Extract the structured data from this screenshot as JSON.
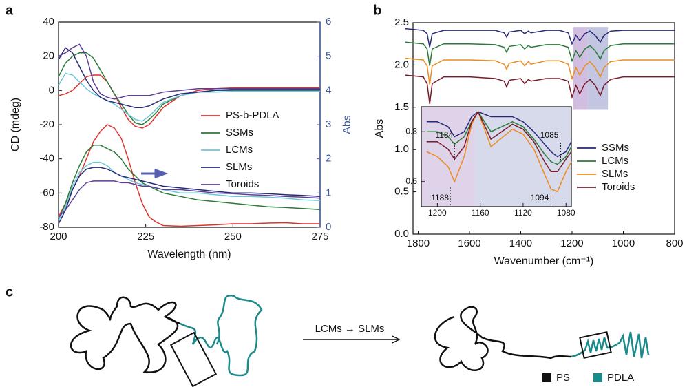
{
  "panel_labels": [
    "a",
    "b",
    "c"
  ],
  "chart_data": [
    {
      "type": "line",
      "xlabel": "Wavelength (nm)",
      "ylabel": "CD (mdeg)",
      "y2label": "Abs",
      "y2color": "#3d5a9e",
      "x": [
        200,
        202,
        204,
        206,
        208,
        210,
        212,
        214,
        216,
        218,
        220,
        222,
        224,
        226,
        228,
        230,
        235,
        240,
        245,
        250,
        255,
        260,
        265,
        270,
        275
      ],
      "xlim": [
        200,
        275
      ],
      "xticks": [
        200,
        225,
        250,
        275
      ],
      "ylim": [
        -80,
        40
      ],
      "yticks": [
        -80,
        -60,
        -40,
        -20,
        0,
        20,
        40
      ],
      "y2lim": [
        0,
        6
      ],
      "y2ticks": [
        0,
        1,
        2,
        3,
        4,
        5,
        6
      ],
      "series": [
        {
          "name": "PS-b-PDLA",
          "color": "#e0312b",
          "values": [
            -3,
            -2,
            0,
            4,
            8,
            9,
            9,
            5,
            -2,
            -10,
            -17,
            -21,
            -22,
            -20,
            -15,
            -10,
            -3,
            0,
            1,
            1.5,
            1.5,
            1.5,
            1.5,
            1.5,
            1.5
          ]
        },
        {
          "name": "SSMs",
          "color": "#2a7a3a",
          "values": [
            8,
            16,
            20,
            22,
            22,
            19,
            12,
            5,
            -2,
            -8,
            -14,
            -19,
            -20,
            -17,
            -13,
            -8,
            -3,
            -1,
            0,
            0,
            0,
            0,
            0,
            0,
            0
          ]
        },
        {
          "name": "LCMs",
          "color": "#6cc7d6",
          "values": [
            3,
            10,
            9,
            5,
            1,
            -2,
            -4,
            -6,
            -8,
            -11,
            -14,
            -17,
            -18,
            -15,
            -11,
            -7,
            -3,
            -1,
            -1,
            -0.5,
            -0.5,
            -0.5,
            -0.5,
            -0.5,
            -0.5
          ]
        },
        {
          "name": "SLMs",
          "color": "#262a78",
          "values": [
            18,
            25,
            22,
            14,
            6,
            0,
            -4,
            -6,
            -7,
            -8,
            -9,
            -10,
            -10,
            -9,
            -7,
            -5,
            -2,
            -1,
            0,
            0.5,
            0.5,
            0.5,
            0.5,
            0.5,
            0.5
          ]
        },
        {
          "name": "Toroids",
          "color": "#5c3f95",
          "values": [
            20,
            22,
            25,
            27,
            20,
            5,
            -2,
            -4,
            -5,
            -4,
            -3,
            -3,
            -3,
            -3,
            -2,
            -1,
            0,
            1,
            1,
            1,
            1,
            1,
            1,
            1,
            1
          ]
        },
        {
          "axis": "y2",
          "color": "#e0312b",
          "values": [
            0.3,
            0.7,
            1.1,
            1.5,
            2.0,
            2.5,
            2.8,
            3.0,
            2.9,
            2.6,
            2.0,
            1.3,
            0.7,
            0.3,
            0.15,
            0.05,
            0.03,
            0.05,
            0.07,
            0.1,
            0.1,
            0.12,
            0.13,
            0.1,
            0.1
          ]
        },
        {
          "axis": "y2",
          "color": "#2a7a3a",
          "values": [
            0.2,
            0.7,
            1.3,
            1.8,
            2.2,
            2.4,
            2.4,
            2.3,
            2.2,
            2.0,
            1.7,
            1.5,
            1.3,
            1.2,
            1.1,
            1.0,
            0.9,
            0.8,
            0.75,
            0.7,
            0.65,
            0.6,
            0.58,
            0.55,
            0.52
          ]
        },
        {
          "axis": "y2",
          "color": "#6cc7d6",
          "values": [
            0.2,
            0.6,
            1.2,
            1.6,
            1.8,
            1.9,
            1.9,
            1.8,
            1.6,
            1.5,
            1.4,
            1.3,
            1.25,
            1.2,
            1.15,
            1.1,
            1.0,
            1.0,
            0.95,
            0.9,
            0.9,
            0.88,
            0.85,
            0.8,
            0.78
          ]
        },
        {
          "axis": "y2",
          "color": "#262a78",
          "values": [
            0.1,
            0.5,
            1.1,
            1.5,
            1.7,
            1.75,
            1.75,
            1.7,
            1.6,
            1.5,
            1.45,
            1.4,
            1.35,
            1.3,
            1.25,
            1.2,
            1.15,
            1.1,
            1.05,
            1.0,
            1.0,
            0.98,
            0.95,
            0.93,
            0.9
          ]
        },
        {
          "axis": "y2",
          "color": "#5c3f95",
          "values": [
            0.3,
            0.5,
            0.8,
            1.1,
            1.3,
            1.35,
            1.35,
            1.35,
            1.35,
            1.3,
            1.3,
            1.25,
            1.2,
            1.2,
            1.15,
            1.1,
            1.1,
            1.05,
            1.0,
            0.98,
            0.95,
            0.93,
            0.9,
            0.88,
            0.85
          ]
        }
      ]
    },
    {
      "type": "line",
      "xlabel": "Wavenumber (cm⁻¹)",
      "ylabel": "Abs",
      "x": [
        1850,
        1780,
        1765,
        1755,
        1745,
        1700,
        1600,
        1500,
        1465,
        1455,
        1445,
        1400,
        1385,
        1370,
        1360,
        1300,
        1250,
        1215,
        1200,
        1185,
        1170,
        1150,
        1130,
        1110,
        1090,
        1075,
        1050,
        1000,
        900,
        800
      ],
      "xlim": [
        1820,
        800
      ],
      "xticks": [
        1800,
        1600,
        1400,
        1200,
        1000,
        800
      ],
      "ylim": [
        0,
        2.5
      ],
      "yticks": [
        {
          "value": 0,
          "label": "0.0"
        },
        0.5,
        {
          "value": 1,
          "label": "1.0"
        },
        1.5,
        {
          "value": 2,
          "label": "2.0"
        },
        2.5
      ],
      "shaded_ranges": [
        [
          1195,
          1140
        ],
        [
          1140,
          1060
        ]
      ],
      "shade_colors": [
        "#c8b2da",
        "#b8bcdc"
      ],
      "series": [
        {
          "name": "SSMs",
          "color": "#262a78",
          "values": [
            2.43,
            2.41,
            2.37,
            2.21,
            2.37,
            2.41,
            2.41,
            2.41,
            2.38,
            2.33,
            2.39,
            2.41,
            2.37,
            2.4,
            2.38,
            2.41,
            2.41,
            2.38,
            2.25,
            2.35,
            2.29,
            2.37,
            2.4,
            2.35,
            2.27,
            2.35,
            2.4,
            2.41,
            2.41,
            2.41
          ]
        },
        {
          "name": "LCMs",
          "color": "#2a7a3a",
          "values": [
            2.27,
            2.25,
            2.19,
            1.99,
            2.19,
            2.25,
            2.25,
            2.24,
            2.21,
            2.15,
            2.22,
            2.24,
            2.19,
            2.23,
            2.21,
            2.24,
            2.24,
            2.21,
            2.05,
            2.17,
            2.09,
            2.19,
            2.23,
            2.17,
            2.07,
            2.17,
            2.23,
            2.25,
            2.25,
            2.25
          ]
        },
        {
          "name": "SLMs",
          "color": "#ee8a1e",
          "values": [
            2.08,
            2.06,
            1.99,
            1.77,
            1.99,
            2.06,
            2.06,
            2.05,
            2.01,
            1.95,
            2.02,
            2.05,
            1.99,
            2.04,
            2.01,
            2.05,
            2.05,
            2.01,
            1.84,
            1.97,
            1.88,
            1.99,
            2.04,
            1.97,
            1.86,
            1.97,
            2.04,
            2.06,
            2.06,
            2.06
          ]
        },
        {
          "name": "Toroids",
          "color": "#7a1a2a",
          "values": [
            1.88,
            1.86,
            1.78,
            1.54,
            1.78,
            1.86,
            1.86,
            1.84,
            1.81,
            1.74,
            1.82,
            1.84,
            1.78,
            1.83,
            1.81,
            1.84,
            1.84,
            1.81,
            1.62,
            1.76,
            1.66,
            1.78,
            1.83,
            1.76,
            1.64,
            1.76,
            1.83,
            1.86,
            1.86,
            1.86
          ]
        }
      ]
    },
    {
      "type": "line",
      "x": [
        1210,
        1200,
        1190,
        1184,
        1175,
        1168,
        1162,
        1150,
        1130,
        1120,
        1110,
        1100,
        1094,
        1088,
        1080,
        1075
      ],
      "xlim": [
        1215,
        1075
      ],
      "xticks": [
        1200,
        1160,
        1120,
        1080
      ],
      "ylim": [
        0.5,
        0.9
      ],
      "yticks": [
        0.6,
        0.8
      ],
      "shaded_ranges": [
        [
          1215,
          1165
        ],
        [
          1165,
          1075
        ]
      ],
      "shade_colors": [
        "#d9cbe6",
        "#d0d3e8"
      ],
      "markers": [
        1184,
        1085,
        1188,
        1094
      ],
      "series": [
        {
          "color": "#262a78",
          "values": [
            0.84,
            0.84,
            0.82,
            0.78,
            0.8,
            0.86,
            0.88,
            0.86,
            0.86,
            0.84,
            0.8,
            0.75,
            0.72,
            0.7,
            0.72,
            0.76
          ]
        },
        {
          "color": "#2a7a3a",
          "values": [
            0.8,
            0.8,
            0.78,
            0.75,
            0.78,
            0.84,
            0.88,
            0.8,
            0.84,
            0.82,
            0.77,
            0.71,
            0.68,
            0.67,
            0.7,
            0.74
          ]
        },
        {
          "color": "#ee8a1e",
          "values": [
            0.72,
            0.7,
            0.66,
            0.6,
            0.7,
            0.83,
            0.88,
            0.74,
            0.81,
            0.79,
            0.73,
            0.63,
            0.57,
            0.56,
            0.64,
            0.68
          ]
        },
        {
          "color": "#7a1a2a",
          "values": [
            0.76,
            0.76,
            0.73,
            0.69,
            0.74,
            0.84,
            0.88,
            0.77,
            0.83,
            0.81,
            0.76,
            0.68,
            0.64,
            0.64,
            0.69,
            0.72
          ]
        }
      ]
    }
  ],
  "diagram": {
    "arrow_label": "LCMs → SLMs",
    "legend": [
      "PS",
      "PDLA"
    ]
  }
}
